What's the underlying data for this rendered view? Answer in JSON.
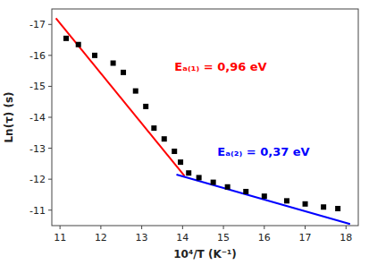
{
  "chart_data": {
    "type": "scatter",
    "x_label": "10⁴/T (K⁻¹)",
    "y_label": "Ln(τ) (s)",
    "series": [
      {
        "type": "scatter",
        "color": "black",
        "marker": "square",
        "x": [
          11.15,
          11.45,
          11.85,
          12.3,
          12.55,
          12.85,
          13.1,
          13.3,
          13.55,
          13.8,
          13.95,
          14.15,
          14.4,
          14.75,
          15.1,
          15.55,
          16.0,
          16.55,
          17.0,
          17.45,
          17.8
        ],
        "values": [
          -16.55,
          -16.35,
          -16.0,
          -15.75,
          -15.45,
          -14.85,
          -14.35,
          -13.65,
          -13.3,
          -12.9,
          -12.55,
          -12.2,
          -12.05,
          -11.9,
          -11.75,
          -11.6,
          -11.45,
          -11.3,
          -11.2,
          -11.1,
          -11.05
        ]
      },
      {
        "type": "line",
        "color": "#ff0000",
        "line_style": "solid",
        "x": [
          10.9,
          14.05
        ],
        "values": [
          -17.2,
          -12.1
        ]
      },
      {
        "type": "line",
        "color": "#0000ff",
        "line_style": "solid",
        "x": [
          13.85,
          18.1
        ],
        "values": [
          -12.15,
          -10.55
        ]
      }
    ],
    "annotations": [
      {
        "text": "Eₐ₍₁₎ = 0,96 eV",
        "x": 13.8,
        "y": -15.6,
        "color": "#ff0000"
      },
      {
        "text": "Eₐ₍₂₎ = 0,37 eV",
        "x": 14.85,
        "y": -12.85,
        "color": "#0000ff"
      }
    ],
    "xlim": [
      10.8,
      18.3
    ],
    "ylim": [
      -10.5,
      -17.5
    ],
    "xticks": [
      11,
      12,
      13,
      14,
      15,
      16,
      17,
      18
    ],
    "yticks": [
      -17,
      -16,
      -15,
      -14,
      -13,
      -12,
      -11
    ],
    "grid": false
  }
}
